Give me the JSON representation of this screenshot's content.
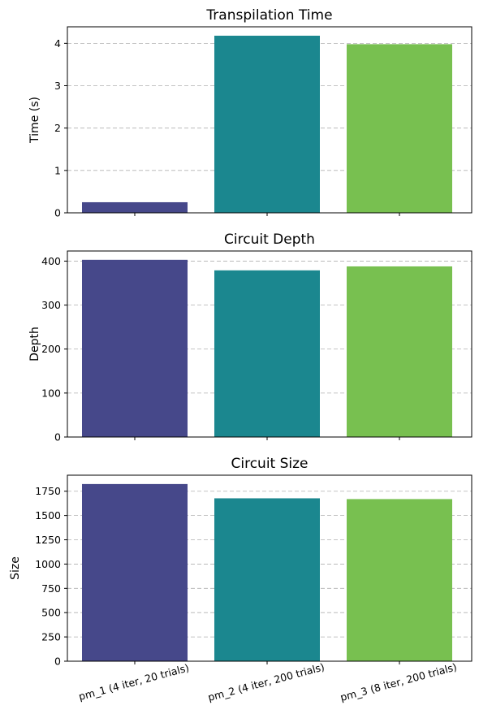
{
  "chart_data": [
    {
      "type": "bar",
      "title": "Transpilation Time",
      "ylabel": "Time (s)",
      "xlabel": "",
      "categories": [
        "pm_1 (4 iter, 20 trials)",
        "pm_2 (4 iter, 200 trials)",
        "pm_3 (8 iter, 200 trials)"
      ],
      "values": [
        0.25,
        4.18,
        3.98
      ],
      "ylim": [
        0,
        4.39
      ],
      "yticks": [
        0,
        1,
        2,
        3,
        4
      ],
      "ytick_labels": [
        "0",
        "1",
        "2",
        "3",
        "4"
      ],
      "colors": [
        "#46488a",
        "#1b878f",
        "#78c050"
      ],
      "grid": "y-dashed",
      "show_x_tick_labels": false
    },
    {
      "type": "bar",
      "title": "Circuit Depth",
      "ylabel": "Depth",
      "xlabel": "",
      "categories": [
        "pm_1 (4 iter, 20 trials)",
        "pm_2 (4 iter, 200 trials)",
        "pm_3 (8 iter, 200 trials)"
      ],
      "values": [
        403,
        379,
        388
      ],
      "ylim": [
        0,
        423
      ],
      "yticks": [
        0,
        100,
        200,
        300,
        400
      ],
      "ytick_labels": [
        "0",
        "100",
        "200",
        "300",
        "400"
      ],
      "colors": [
        "#46488a",
        "#1b878f",
        "#78c050"
      ],
      "grid": "y-dashed",
      "show_x_tick_labels": false
    },
    {
      "type": "bar",
      "title": "Circuit Size",
      "ylabel": "Size",
      "xlabel": "",
      "categories": [
        "pm_1 (4 iter, 20 trials)",
        "pm_2 (4 iter, 200 trials)",
        "pm_3 (8 iter, 200 trials)"
      ],
      "values": [
        1824,
        1677,
        1669
      ],
      "ylim": [
        0,
        1915
      ],
      "yticks": [
        0,
        250,
        500,
        750,
        1000,
        1250,
        1500,
        1750
      ],
      "ytick_labels": [
        "0",
        "250",
        "500",
        "750",
        "1000",
        "1250",
        "1500",
        "1750"
      ],
      "colors": [
        "#46488a",
        "#1b878f",
        "#78c050"
      ],
      "grid": "y-dashed",
      "show_x_tick_labels": true
    }
  ]
}
